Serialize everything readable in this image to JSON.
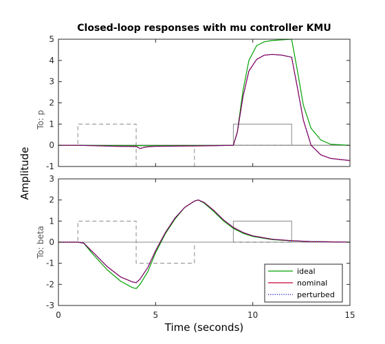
{
  "chart_data": {
    "type": "line",
    "title": "Closed-loop responses with mu controller KMU",
    "xlabel": "Time (seconds)",
    "ylabel": "Amplitude",
    "xlim": [
      0,
      15
    ],
    "xticks": [
      "0",
      "5",
      "10",
      "15"
    ],
    "legend": {
      "placement": "bottom-right of lower panel",
      "entries": [
        {
          "name": "ideal",
          "color": "#00a000",
          "style": "solid"
        },
        {
          "name": "nominal",
          "color": "#c00030",
          "style": "solid"
        },
        {
          "name": "perturbed",
          "color": "#0000c0",
          "style": "dotted"
        }
      ]
    },
    "panels": [
      {
        "row_label": "To: p",
        "ylim": [
          -1,
          5
        ],
        "yticks": [
          "-1",
          "0",
          "1",
          "2",
          "3",
          "4",
          "5"
        ],
        "reference": {
          "name": "command",
          "style": "solid",
          "color": "#888888",
          "x": [
            0,
            9,
            9,
            12,
            12,
            15
          ],
          "y": [
            0,
            0,
            1,
            1,
            0,
            0
          ]
        },
        "disturbance": {
          "style": "dashed",
          "color": "#888888",
          "x": [
            0,
            1,
            1,
            4,
            4,
            7,
            7,
            15
          ],
          "y": [
            0,
            0,
            1,
            1,
            -1,
            -1,
            0,
            0
          ]
        },
        "series": [
          {
            "name": "ideal",
            "x": [
              0,
              1,
              3,
              4,
              4.2,
              7,
              8,
              9,
              9.2,
              9.5,
              9.8,
              10.2,
              10.6,
              11,
              11.5,
              12,
              12.3,
              12.6,
              13,
              13.5,
              14,
              15
            ],
            "y": [
              0,
              0,
              -0.02,
              -0.02,
              -0.02,
              -0.01,
              -0.01,
              0,
              0.6,
              2.6,
              4.0,
              4.7,
              4.88,
              4.94,
              4.97,
              5.0,
              3.5,
              1.9,
              0.8,
              0.25,
              0.05,
              0
            ]
          },
          {
            "name": "nominal",
            "x": [
              0,
              1,
              3,
              4,
              4.2,
              4.5,
              5,
              7,
              8,
              9,
              9.2,
              9.5,
              9.8,
              10.2,
              10.6,
              11,
              11.5,
              12,
              12.3,
              12.6,
              13,
              13.5,
              14,
              15
            ],
            "y": [
              0,
              0,
              -0.05,
              -0.06,
              -0.15,
              -0.08,
              -0.05,
              -0.03,
              -0.02,
              0,
              0.6,
              2.3,
              3.5,
              4.05,
              4.25,
              4.28,
              4.25,
              4.15,
              2.7,
              1.2,
              0.0,
              -0.45,
              -0.62,
              -0.72
            ]
          },
          {
            "name": "perturbed",
            "x": [
              0,
              1,
              3,
              4,
              4.2,
              4.5,
              5,
              7,
              8,
              9,
              9.2,
              9.5,
              9.8,
              10.2,
              10.6,
              11,
              11.5,
              12,
              12.3,
              12.6,
              13,
              13.5,
              14,
              15
            ],
            "y": [
              0,
              0,
              -0.05,
              -0.06,
              -0.15,
              -0.08,
              -0.05,
              -0.03,
              -0.02,
              0,
              0.6,
              2.3,
              3.5,
              4.05,
              4.25,
              4.28,
              4.25,
              4.15,
              2.7,
              1.2,
              0.0,
              -0.45,
              -0.62,
              -0.72
            ]
          }
        ]
      },
      {
        "row_label": "To: beta",
        "ylim": [
          -3,
          3
        ],
        "yticks": [
          "-3",
          "-2",
          "-1",
          "0",
          "1",
          "2",
          "3"
        ],
        "reference": {
          "name": "command",
          "style": "solid",
          "color": "#888888",
          "x": [
            0,
            9,
            9,
            12,
            12,
            15
          ],
          "y": [
            0,
            0,
            1,
            1,
            0,
            0
          ]
        },
        "disturbance": {
          "style": "dashed",
          "color": "#888888",
          "x": [
            0,
            1,
            1,
            4,
            4,
            7,
            7,
            15
          ],
          "y": [
            0,
            0,
            1,
            1,
            -1,
            -1,
            0,
            0
          ]
        },
        "series": [
          {
            "name": "ideal",
            "x": [
              0,
              1,
              1.3,
              1.8,
              2.5,
              3.2,
              3.8,
              4.0,
              4.2,
              4.6,
              5,
              5.5,
              6,
              6.5,
              7,
              7.2,
              7.5,
              8,
              8.5,
              9,
              9.5,
              10,
              11,
              12,
              13,
              15
            ],
            "y": [
              0,
              0,
              -0.05,
              -0.6,
              -1.3,
              -1.85,
              -2.15,
              -2.2,
              -2.0,
              -1.4,
              -0.5,
              0.4,
              1.1,
              1.65,
              1.95,
              2.0,
              1.85,
              1.45,
              1.0,
              0.65,
              0.42,
              0.27,
              0.12,
              0.06,
              0.03,
              0
            ]
          },
          {
            "name": "nominal",
            "x": [
              0,
              1,
              1.3,
              1.8,
              2.5,
              3.2,
              3.8,
              4.0,
              4.2,
              4.6,
              5,
              5.5,
              6,
              6.5,
              7,
              7.2,
              7.5,
              8,
              8.5,
              9,
              9.5,
              10,
              11,
              12,
              13,
              15
            ],
            "y": [
              0,
              0,
              -0.04,
              -0.5,
              -1.15,
              -1.65,
              -1.88,
              -1.92,
              -1.75,
              -1.2,
              -0.4,
              0.45,
              1.15,
              1.65,
              1.95,
              2.0,
              1.88,
              1.5,
              1.05,
              0.7,
              0.46,
              0.3,
              0.14,
              0.07,
              0.03,
              0
            ]
          },
          {
            "name": "perturbed",
            "x": [
              0,
              1,
              1.3,
              1.8,
              2.5,
              3.2,
              3.8,
              4.0,
              4.2,
              4.6,
              5,
              5.5,
              6,
              6.5,
              7,
              7.2,
              7.5,
              8,
              8.5,
              9,
              9.5,
              10,
              11,
              12,
              13,
              15
            ],
            "y": [
              0,
              0,
              -0.04,
              -0.5,
              -1.15,
              -1.65,
              -1.88,
              -1.92,
              -1.75,
              -1.2,
              -0.4,
              0.45,
              1.15,
              1.65,
              1.95,
              2.0,
              1.88,
              1.5,
              1.05,
              0.7,
              0.46,
              0.3,
              0.14,
              0.07,
              0.03,
              0
            ]
          }
        ]
      }
    ]
  }
}
